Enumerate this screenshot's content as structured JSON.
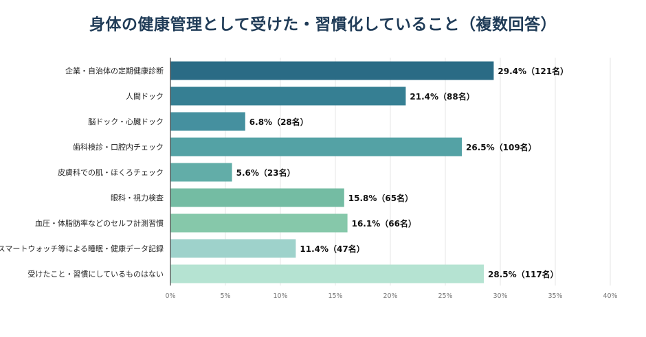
{
  "chart_data": {
    "type": "bar",
    "orientation": "horizontal",
    "title": "身体の健康管理として受けた・習慣化していること（複数回答）",
    "categories": [
      "企業・自治体の定期健康診断",
      "人間ドック",
      "脳ドック・心臓ドック",
      "歯科検診・口腔内チェック",
      "皮膚科での肌・ほくろチェック",
      "眼科・視力検査",
      "血圧・体脂肪率などのセルフ計測習慣",
      "スマートウォッチ等による睡眠・健康データ記録",
      "受けたこと・習慣にしているものはない"
    ],
    "values": [
      29.4,
      21.4,
      6.8,
      26.5,
      5.6,
      15.8,
      16.1,
      11.4,
      28.5
    ],
    "data_labels": [
      "29.4%（121名）",
      "21.4%（88名）",
      "6.8%（28名）",
      "26.5%（109名）",
      "5.6%（23名）",
      "15.8%（65名）",
      "16.1%（66名）",
      "11.4%（47名）",
      "28.5%（117名）"
    ],
    "xlim": [
      0,
      40
    ],
    "xticks": [
      "0%",
      "5%",
      "10%",
      "15%",
      "20%",
      "25%",
      "30%",
      "35%",
      "40%"
    ],
    "grid": true,
    "colors": [
      "#2a6b85",
      "#367f93",
      "#45909f",
      "#54a2a5",
      "#62ada8",
      "#74bca3",
      "#86c8aa",
      "#9ed2cb",
      "#b5e3d2"
    ],
    "axis_color": "#444444",
    "grid_color": "#e6e6e6"
  }
}
